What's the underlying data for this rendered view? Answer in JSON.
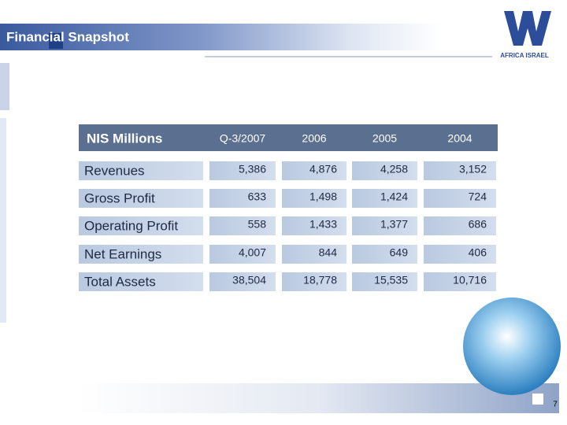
{
  "header": {
    "title": "Financial Snapshot",
    "logo_text": "AFRICA ISRAEL"
  },
  "table": {
    "columns": [
      "NIS Millions",
      "Q-3/2007",
      "2006",
      "2005",
      "2004"
    ],
    "rows": [
      [
        "Revenues",
        "5,386",
        "4,876",
        "4,258",
        "3,152"
      ],
      [
        "Gross Profit",
        "633",
        "1,498",
        "1,424",
        "724"
      ],
      [
        "Operating Profit",
        "558",
        "1,433",
        "1,377",
        "686"
      ],
      [
        "Net Earnings",
        "4,007",
        "844",
        "649",
        "406"
      ],
      [
        "Total Assets",
        "38,504",
        "18,778",
        "15,535",
        "10,716"
      ]
    ]
  },
  "footer": {
    "page_number": "7"
  }
}
